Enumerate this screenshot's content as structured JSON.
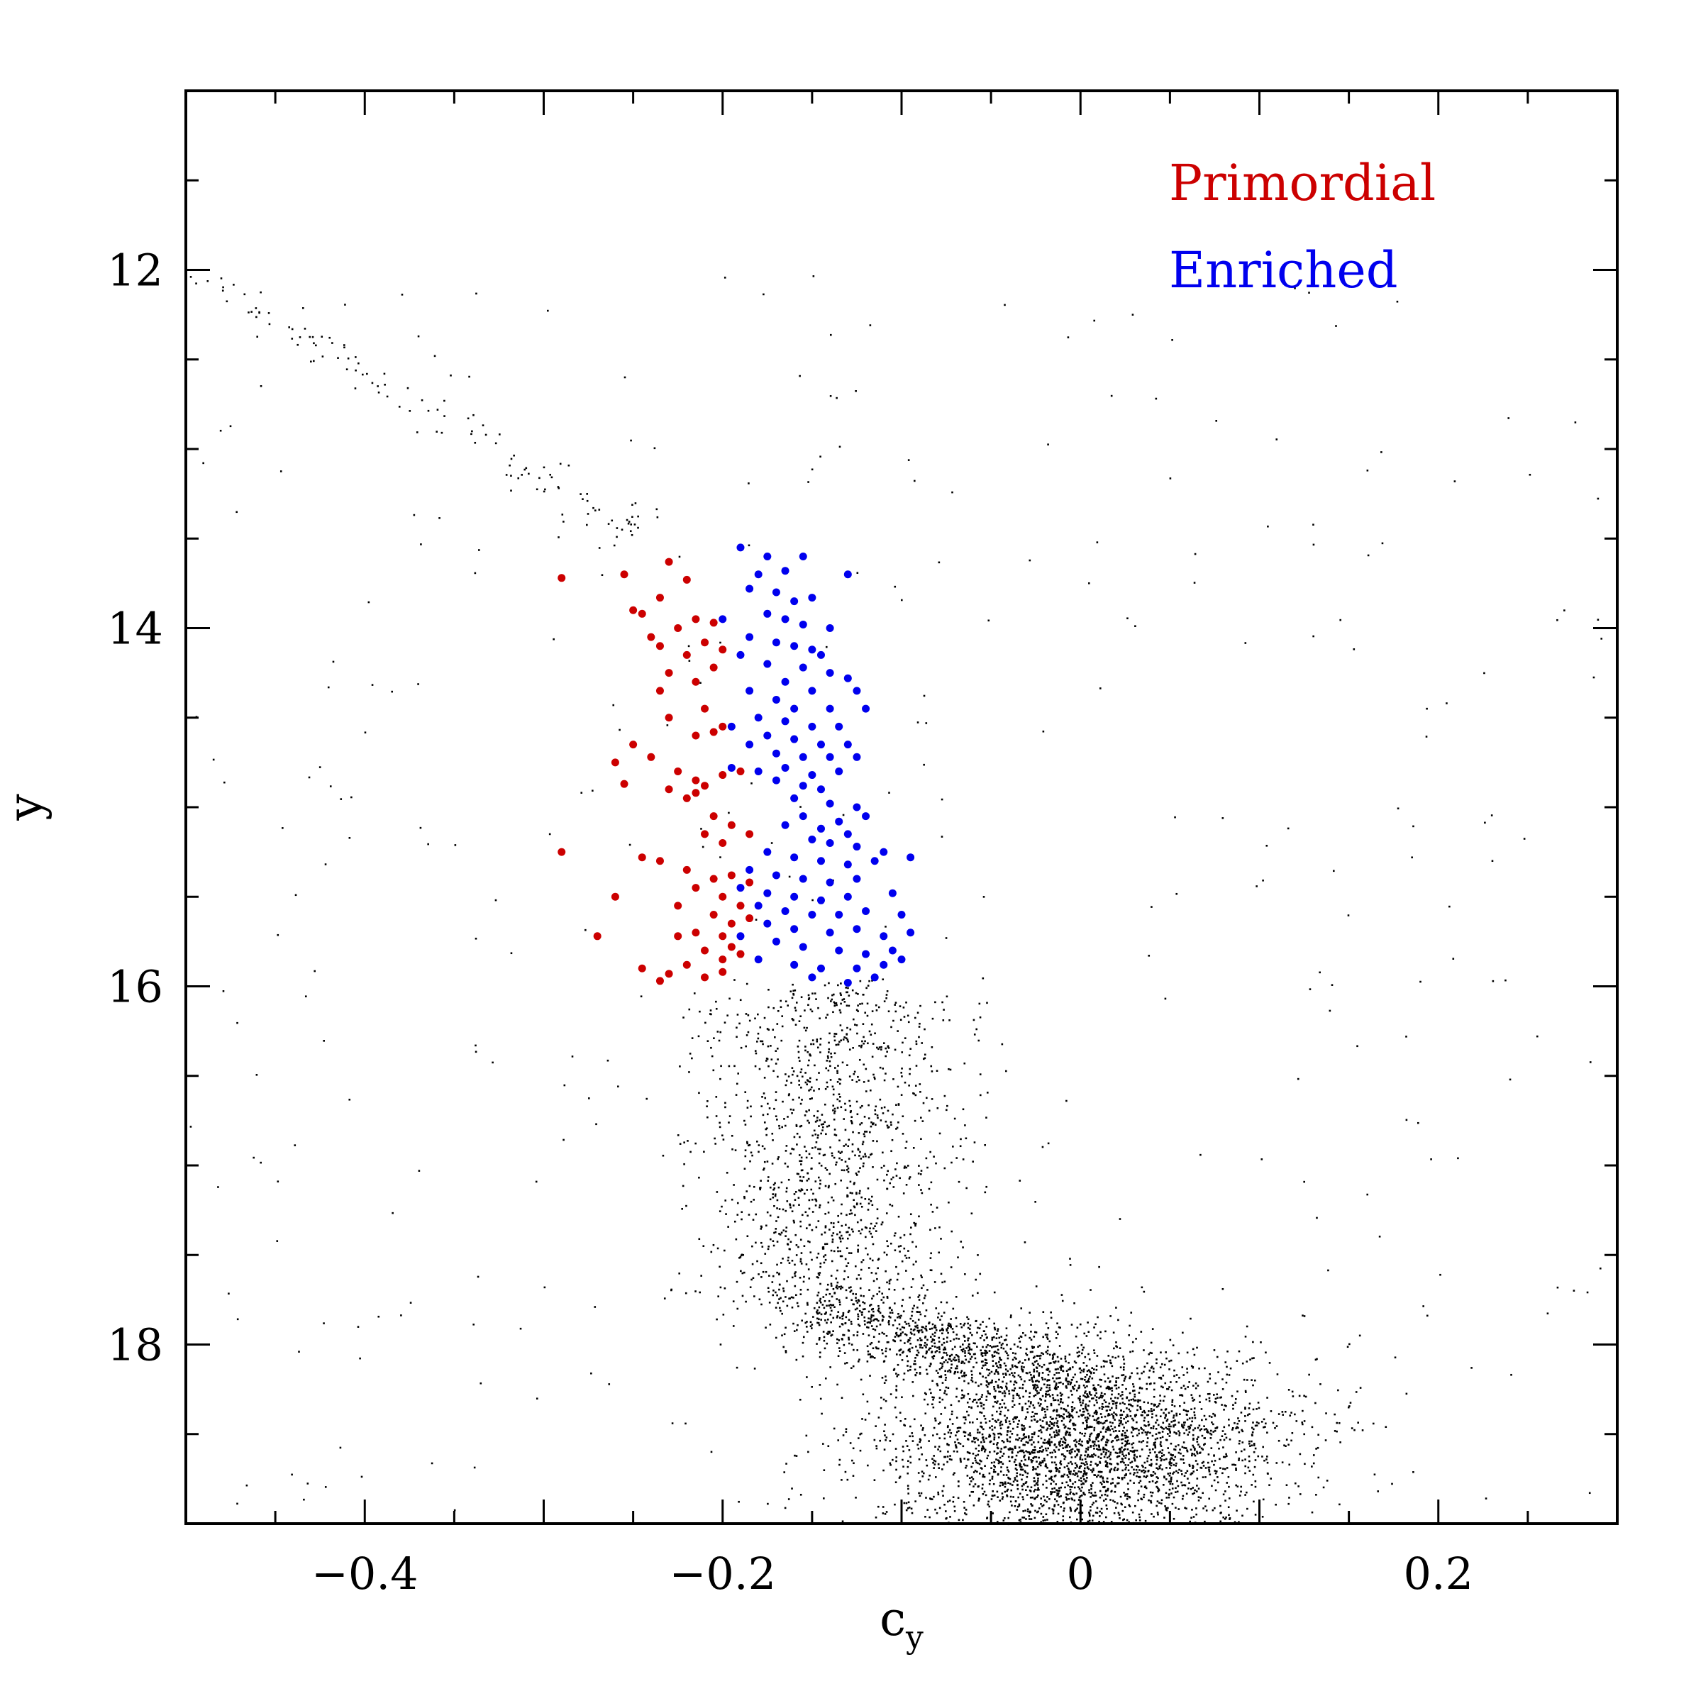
{
  "chart_data": {
    "type": "scatter",
    "title": "",
    "xlabel": "c",
    "xlabel_sub": "y",
    "ylabel": "y",
    "xlim": [
      -0.5,
      0.3
    ],
    "ylim": [
      19,
      11
    ],
    "y_inverted": true,
    "grid": false,
    "legend_position": "top-right",
    "x_ticks": [
      {
        "value": -0.4,
        "label": "−0.4"
      },
      {
        "value": -0.2,
        "label": "−0.2"
      },
      {
        "value": 0,
        "label": "0"
      },
      {
        "value": 0.2,
        "label": "0.2"
      }
    ],
    "y_ticks": [
      {
        "value": 12,
        "label": "12"
      },
      {
        "value": 14,
        "label": "14"
      },
      {
        "value": 16,
        "label": "16"
      },
      {
        "value": 18,
        "label": "18"
      }
    ],
    "legend": [
      {
        "name": "Primordial",
        "color": "#cc0000"
      },
      {
        "name": "Enriched",
        "color": "#0000ee"
      }
    ],
    "series": [
      {
        "name": "Primordial",
        "color": "#cc0000",
        "points": [
          [
            -0.29,
            13.72
          ],
          [
            -0.255,
            13.7
          ],
          [
            -0.25,
            13.9
          ],
          [
            -0.245,
            13.92
          ],
          [
            -0.235,
            13.83
          ],
          [
            -0.23,
            13.63
          ],
          [
            -0.22,
            13.73
          ],
          [
            -0.24,
            14.05
          ],
          [
            -0.235,
            14.1
          ],
          [
            -0.225,
            14.0
          ],
          [
            -0.215,
            13.95
          ],
          [
            -0.21,
            14.08
          ],
          [
            -0.205,
            13.97
          ],
          [
            -0.2,
            14.12
          ],
          [
            -0.23,
            14.25
          ],
          [
            -0.22,
            14.15
          ],
          [
            -0.215,
            14.3
          ],
          [
            -0.205,
            14.22
          ],
          [
            -0.235,
            14.35
          ],
          [
            -0.21,
            14.45
          ],
          [
            -0.2,
            14.55
          ],
          [
            -0.23,
            14.5
          ],
          [
            -0.215,
            14.6
          ],
          [
            -0.205,
            14.58
          ],
          [
            -0.25,
            14.65
          ],
          [
            -0.26,
            14.75
          ],
          [
            -0.24,
            14.72
          ],
          [
            -0.225,
            14.8
          ],
          [
            -0.215,
            14.85
          ],
          [
            -0.21,
            14.88
          ],
          [
            -0.2,
            14.82
          ],
          [
            -0.19,
            14.8
          ],
          [
            -0.255,
            14.87
          ],
          [
            -0.23,
            14.9
          ],
          [
            -0.22,
            14.95
          ],
          [
            -0.215,
            14.92
          ],
          [
            -0.205,
            15.05
          ],
          [
            -0.195,
            15.1
          ],
          [
            -0.185,
            15.15
          ],
          [
            -0.21,
            15.15
          ],
          [
            -0.2,
            15.2
          ],
          [
            -0.29,
            15.25
          ],
          [
            -0.245,
            15.28
          ],
          [
            -0.235,
            15.3
          ],
          [
            -0.22,
            15.35
          ],
          [
            -0.205,
            15.4
          ],
          [
            -0.195,
            15.38
          ],
          [
            -0.185,
            15.42
          ],
          [
            -0.215,
            15.45
          ],
          [
            -0.2,
            15.5
          ],
          [
            -0.26,
            15.5
          ],
          [
            -0.225,
            15.55
          ],
          [
            -0.19,
            15.55
          ],
          [
            -0.205,
            15.6
          ],
          [
            -0.195,
            15.65
          ],
          [
            -0.185,
            15.62
          ],
          [
            -0.215,
            15.7
          ],
          [
            -0.2,
            15.72
          ],
          [
            -0.27,
            15.72
          ],
          [
            -0.225,
            15.72
          ],
          [
            -0.195,
            15.78
          ],
          [
            -0.21,
            15.8
          ],
          [
            -0.2,
            15.85
          ],
          [
            -0.19,
            15.82
          ],
          [
            -0.22,
            15.88
          ],
          [
            -0.245,
            15.9
          ],
          [
            -0.23,
            15.93
          ],
          [
            -0.21,
            15.95
          ],
          [
            -0.2,
            15.92
          ],
          [
            -0.235,
            15.97
          ]
        ]
      },
      {
        "name": "Enriched",
        "color": "#0000ee",
        "points": [
          [
            -0.19,
            13.55
          ],
          [
            -0.175,
            13.6
          ],
          [
            -0.155,
            13.6
          ],
          [
            -0.165,
            13.68
          ],
          [
            -0.18,
            13.7
          ],
          [
            -0.13,
            13.7
          ],
          [
            -0.185,
            13.78
          ],
          [
            -0.17,
            13.8
          ],
          [
            -0.16,
            13.85
          ],
          [
            -0.15,
            13.83
          ],
          [
            -0.175,
            13.92
          ],
          [
            -0.165,
            13.95
          ],
          [
            -0.155,
            13.98
          ],
          [
            -0.14,
            14.0
          ],
          [
            -0.2,
            13.95
          ],
          [
            -0.185,
            14.05
          ],
          [
            -0.17,
            14.08
          ],
          [
            -0.16,
            14.1
          ],
          [
            -0.15,
            14.12
          ],
          [
            -0.145,
            14.15
          ],
          [
            -0.19,
            14.15
          ],
          [
            -0.175,
            14.2
          ],
          [
            -0.155,
            14.22
          ],
          [
            -0.14,
            14.25
          ],
          [
            -0.13,
            14.28
          ],
          [
            -0.165,
            14.3
          ],
          [
            -0.15,
            14.35
          ],
          [
            -0.125,
            14.35
          ],
          [
            -0.185,
            14.35
          ],
          [
            -0.17,
            14.4
          ],
          [
            -0.16,
            14.45
          ],
          [
            -0.14,
            14.45
          ],
          [
            -0.12,
            14.45
          ],
          [
            -0.18,
            14.5
          ],
          [
            -0.165,
            14.52
          ],
          [
            -0.15,
            14.55
          ],
          [
            -0.135,
            14.55
          ],
          [
            -0.195,
            14.55
          ],
          [
            -0.175,
            14.6
          ],
          [
            -0.16,
            14.62
          ],
          [
            -0.145,
            14.65
          ],
          [
            -0.13,
            14.65
          ],
          [
            -0.185,
            14.65
          ],
          [
            -0.17,
            14.7
          ],
          [
            -0.155,
            14.72
          ],
          [
            -0.14,
            14.72
          ],
          [
            -0.125,
            14.72
          ],
          [
            -0.195,
            14.78
          ],
          [
            -0.18,
            14.8
          ],
          [
            -0.165,
            14.78
          ],
          [
            -0.15,
            14.82
          ],
          [
            -0.135,
            14.8
          ],
          [
            -0.17,
            14.85
          ],
          [
            -0.155,
            14.88
          ],
          [
            -0.145,
            14.9
          ],
          [
            -0.16,
            14.95
          ],
          [
            -0.14,
            14.98
          ],
          [
            -0.125,
            15.0
          ],
          [
            -0.155,
            15.05
          ],
          [
            -0.135,
            15.08
          ],
          [
            -0.12,
            15.05
          ],
          [
            -0.165,
            15.1
          ],
          [
            -0.145,
            15.12
          ],
          [
            -0.13,
            15.15
          ],
          [
            -0.15,
            15.18
          ],
          [
            -0.14,
            15.2
          ],
          [
            -0.125,
            15.22
          ],
          [
            -0.11,
            15.25
          ],
          [
            -0.175,
            15.25
          ],
          [
            -0.16,
            15.28
          ],
          [
            -0.145,
            15.3
          ],
          [
            -0.13,
            15.32
          ],
          [
            -0.115,
            15.3
          ],
          [
            -0.095,
            15.28
          ],
          [
            -0.185,
            15.35
          ],
          [
            -0.17,
            15.38
          ],
          [
            -0.155,
            15.4
          ],
          [
            -0.14,
            15.42
          ],
          [
            -0.125,
            15.4
          ],
          [
            -0.19,
            15.45
          ],
          [
            -0.175,
            15.48
          ],
          [
            -0.16,
            15.5
          ],
          [
            -0.145,
            15.52
          ],
          [
            -0.13,
            15.5
          ],
          [
            -0.105,
            15.48
          ],
          [
            -0.18,
            15.55
          ],
          [
            -0.165,
            15.58
          ],
          [
            -0.15,
            15.6
          ],
          [
            -0.135,
            15.6
          ],
          [
            -0.12,
            15.58
          ],
          [
            -0.1,
            15.6
          ],
          [
            -0.175,
            15.65
          ],
          [
            -0.16,
            15.68
          ],
          [
            -0.14,
            15.7
          ],
          [
            -0.125,
            15.68
          ],
          [
            -0.11,
            15.72
          ],
          [
            -0.095,
            15.7
          ],
          [
            -0.19,
            15.72
          ],
          [
            -0.17,
            15.75
          ],
          [
            -0.155,
            15.78
          ],
          [
            -0.135,
            15.8
          ],
          [
            -0.12,
            15.82
          ],
          [
            -0.105,
            15.8
          ],
          [
            -0.18,
            15.85
          ],
          [
            -0.16,
            15.88
          ],
          [
            -0.145,
            15.9
          ],
          [
            -0.125,
            15.9
          ],
          [
            -0.11,
            15.88
          ],
          [
            -0.1,
            15.85
          ],
          [
            -0.15,
            15.95
          ],
          [
            -0.13,
            15.98
          ],
          [
            -0.115,
            15.95
          ]
        ]
      }
    ],
    "field_stars_note_free": true
  }
}
